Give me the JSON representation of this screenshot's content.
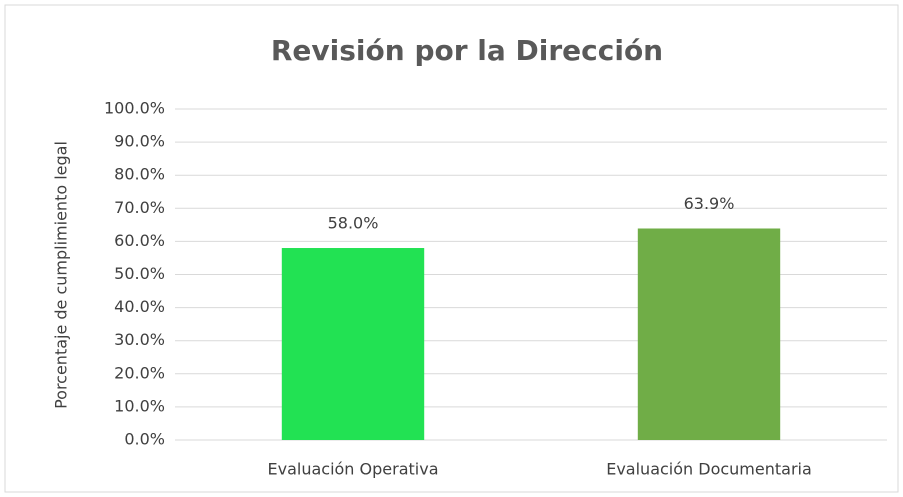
{
  "chart_data": {
    "type": "bar",
    "title": "Revisión por la Dirección",
    "ylabel": "Porcentaje de cumplimiento legal",
    "categories": [
      "Evaluación Operativa",
      "Evaluación Documentaria"
    ],
    "values": [
      58.0,
      63.9
    ],
    "value_labels": [
      "58.0%",
      "63.9%"
    ],
    "colors": [
      "#22e253",
      "#70ad47"
    ],
    "ylim": [
      0,
      100
    ],
    "yticks": [
      {
        "value": 0,
        "label": "0.0%"
      },
      {
        "value": 10,
        "label": "10.0%"
      },
      {
        "value": 20,
        "label": "20.0%"
      },
      {
        "value": 30,
        "label": "30.0%"
      },
      {
        "value": 40,
        "label": "40.0%"
      },
      {
        "value": 50,
        "label": "50.0%"
      },
      {
        "value": 60,
        "label": "60.0%"
      },
      {
        "value": 70,
        "label": "70.0%"
      },
      {
        "value": 80,
        "label": "80.0%"
      },
      {
        "value": 90,
        "label": "90.0%"
      },
      {
        "value": 100,
        "label": "100.0%"
      }
    ],
    "grid": true
  }
}
